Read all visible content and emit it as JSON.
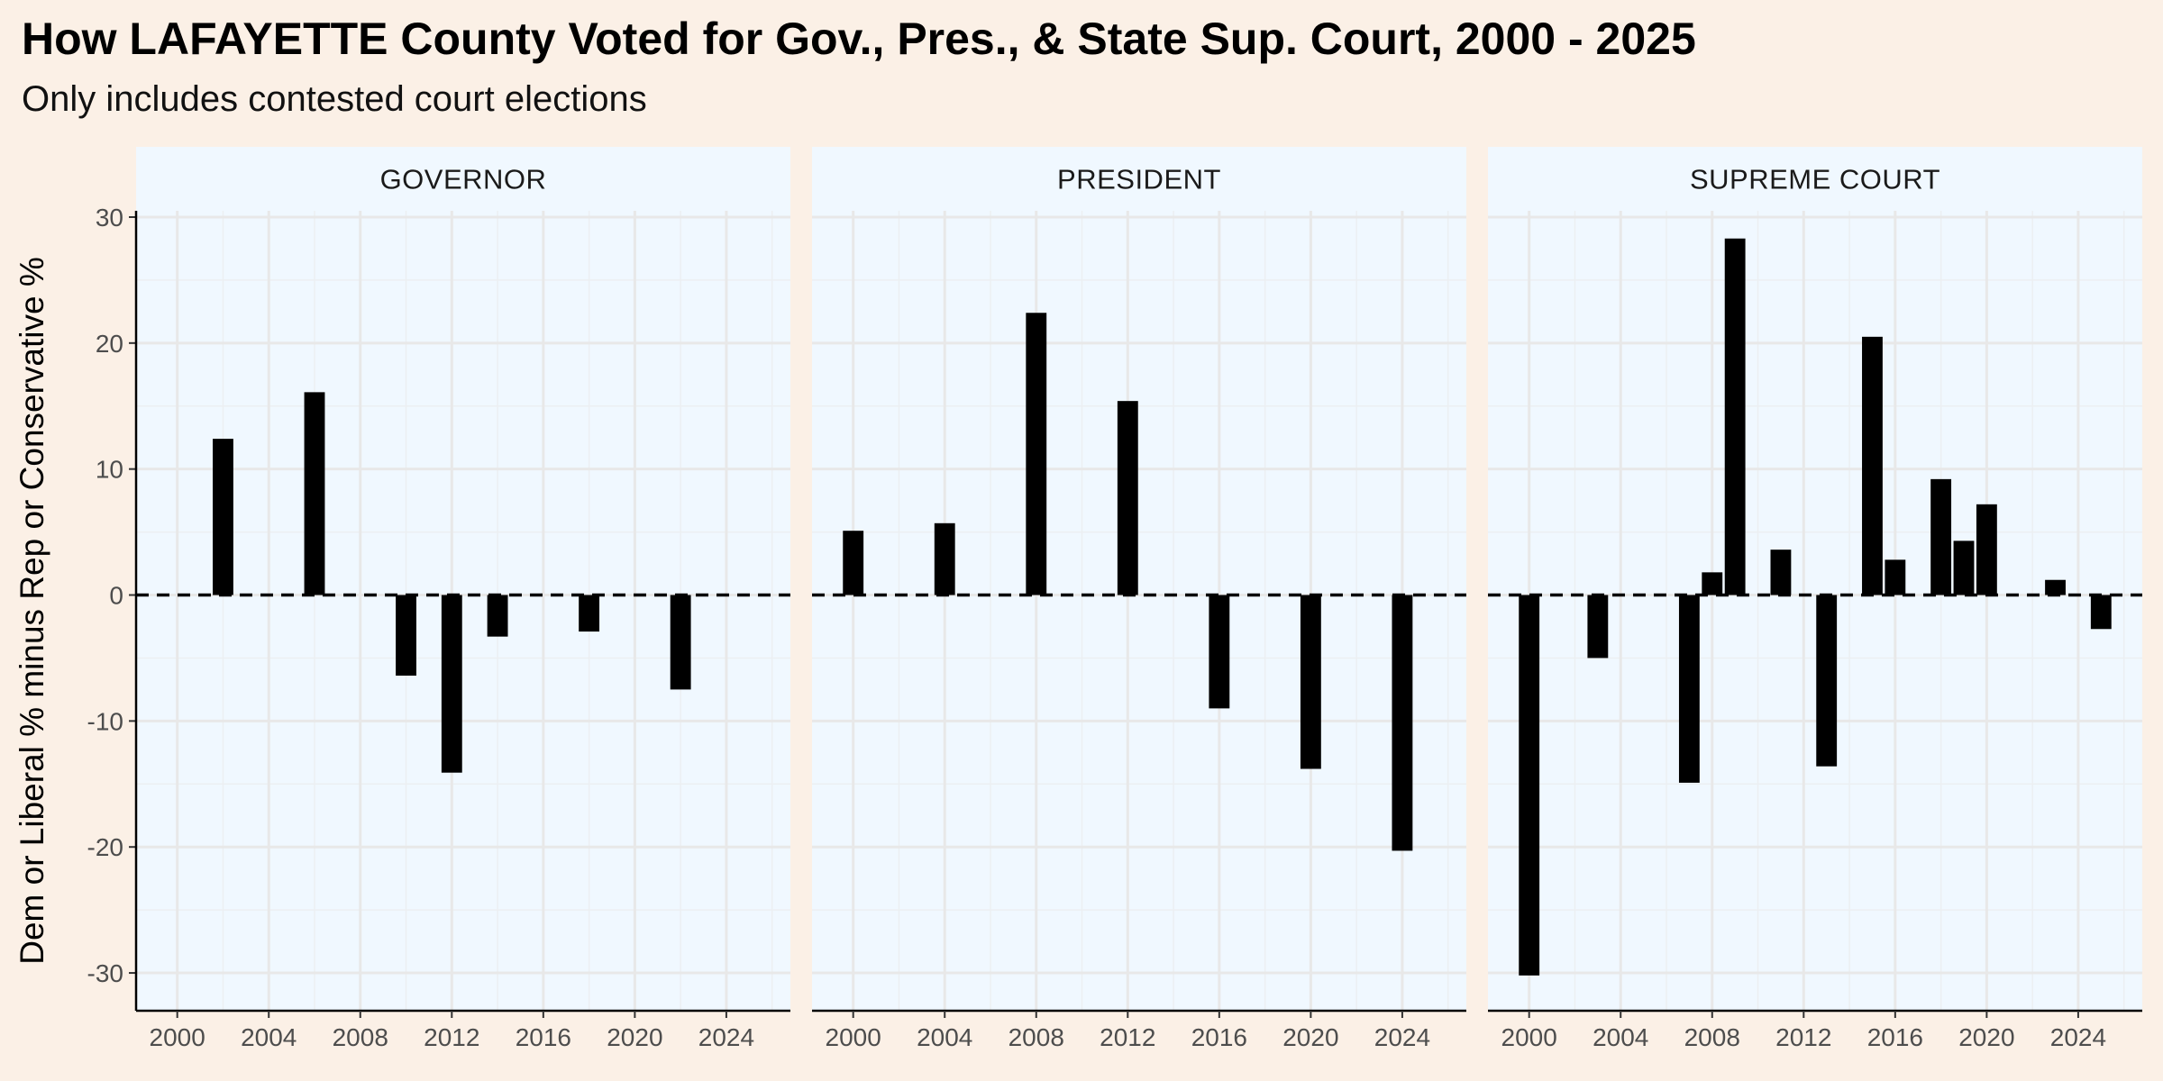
{
  "title": "How LAFAYETTE County Voted for Gov., Pres., & State Sup. Court, 2000 - 2025",
  "subtitle": "Only includes contested court elections",
  "chart_data": {
    "type": "bar",
    "title": "How LAFAYETTE County Voted for Gov., Pres., & State Sup. Court, 2000 - 2025",
    "subtitle": "Only includes contested court elections",
    "ylabel": "Dem or Liberal % minus Rep or Conservative %",
    "xlabel": "",
    "ylim": [
      -33,
      30.5
    ],
    "xlim": [
      1998.2,
      2026.8
    ],
    "y_ticks": [
      -30,
      -20,
      -10,
      0,
      10,
      20,
      30
    ],
    "y_tick_labels": [
      "-30",
      "-20",
      "-10",
      "0",
      "10",
      "20",
      "30"
    ],
    "x_ticks": [
      2000,
      2004,
      2008,
      2012,
      2016,
      2020,
      2024
    ],
    "x_tick_labels": [
      "2000",
      "2004",
      "2008",
      "2012",
      "2016",
      "2020",
      "2024"
    ],
    "zero_line": "dashed",
    "grid": true,
    "colors": {
      "bar": "#000000",
      "panel_background": "#F0F8FF",
      "page_background": "#FBF0E6",
      "grid": "#E8E8E8"
    },
    "facets": [
      {
        "name": "GOVERNOR",
        "points": [
          {
            "x": 2002,
            "y": 12.4
          },
          {
            "x": 2006,
            "y": 16.1
          },
          {
            "x": 2010,
            "y": -6.4
          },
          {
            "x": 2012,
            "y": -14.1
          },
          {
            "x": 2014,
            "y": -3.3
          },
          {
            "x": 2018,
            "y": -2.9
          },
          {
            "x": 2022,
            "y": -7.5
          }
        ]
      },
      {
        "name": "PRESIDENT",
        "points": [
          {
            "x": 2000,
            "y": 5.1
          },
          {
            "x": 2004,
            "y": 5.7
          },
          {
            "x": 2008,
            "y": 22.4
          },
          {
            "x": 2012,
            "y": 15.4
          },
          {
            "x": 2016,
            "y": -9.0
          },
          {
            "x": 2020,
            "y": -13.8
          },
          {
            "x": 2024,
            "y": -20.3
          }
        ]
      },
      {
        "name": "SUPREME COURT",
        "points": [
          {
            "x": 2000,
            "y": -30.2
          },
          {
            "x": 2003,
            "y": -5.0
          },
          {
            "x": 2007,
            "y": -14.9
          },
          {
            "x": 2008,
            "y": 1.8
          },
          {
            "x": 2009,
            "y": 28.3
          },
          {
            "x": 2011,
            "y": 3.6
          },
          {
            "x": 2013,
            "y": -13.6
          },
          {
            "x": 2015,
            "y": 20.5
          },
          {
            "x": 2016,
            "y": 2.8
          },
          {
            "x": 2018,
            "y": 9.2
          },
          {
            "x": 2019,
            "y": 4.3
          },
          {
            "x": 2020,
            "y": 7.2
          },
          {
            "x": 2023,
            "y": 1.2
          },
          {
            "x": 2025,
            "y": -2.7
          }
        ]
      }
    ]
  }
}
